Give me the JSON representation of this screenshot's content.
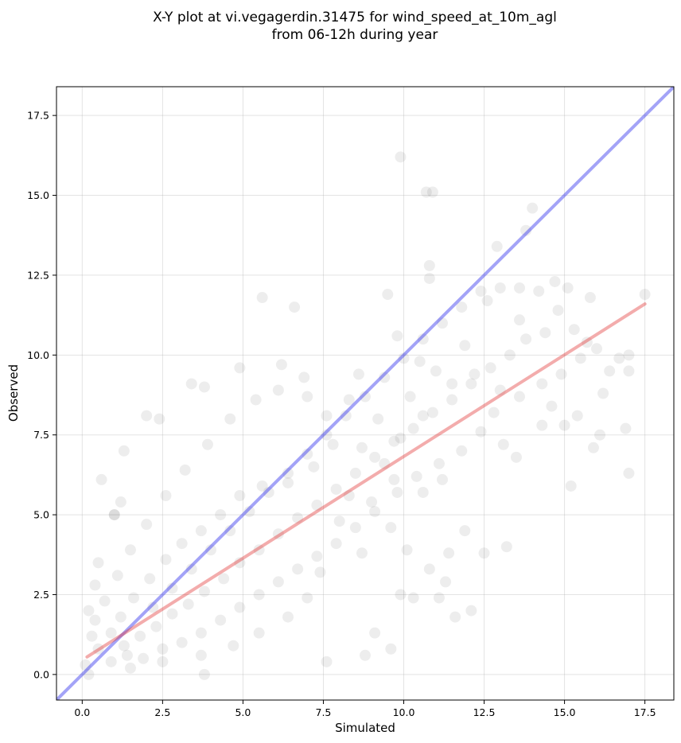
{
  "chart_data": {
    "type": "scatter",
    "title_lines": [
      "X-Y plot at vi.vegagerdin.31475 for wind_speed_at_10m_agl",
      "from 06-12h during year"
    ],
    "xlabel": "Simulated",
    "ylabel": "Observed",
    "xlim": [
      -0.8,
      18.4
    ],
    "ylim": [
      -0.8,
      18.4
    ],
    "xticks": [
      0.0,
      2.5,
      5.0,
      7.5,
      10.0,
      12.5,
      15.0,
      17.5
    ],
    "yticks": [
      0.0,
      2.5,
      5.0,
      7.5,
      10.0,
      12.5,
      15.0,
      17.5
    ],
    "xtick_labels": [
      "0.0",
      "2.5",
      "5.0",
      "7.5",
      "10.0",
      "12.5",
      "15.0",
      "17.5"
    ],
    "ytick_labels": [
      "0.0",
      "2.5",
      "5.0",
      "7.5",
      "10.0",
      "12.5",
      "15.0",
      "17.5"
    ],
    "grid": true,
    "point_color": "#000000",
    "point_opacity": 0.07,
    "identity_line": {
      "from": [
        -0.8,
        -0.8
      ],
      "to": [
        18.4,
        18.4
      ],
      "color": "#3333ee",
      "opacity": 0.45
    },
    "fit_line": {
      "from": [
        0.15,
        0.55
      ],
      "to": [
        17.5,
        11.6
      ],
      "color": "#e03030",
      "opacity": 0.4
    },
    "points": [
      [
        9.9,
        16.2
      ],
      [
        10.7,
        15.1
      ],
      [
        10.9,
        15.1
      ],
      [
        13.8,
        13.9
      ],
      [
        14.0,
        14.6
      ],
      [
        12.9,
        13.4
      ],
      [
        10.8,
        12.8
      ],
      [
        10.8,
        12.4
      ],
      [
        5.6,
        11.8
      ],
      [
        6.6,
        11.5
      ],
      [
        9.5,
        11.9
      ],
      [
        17.5,
        11.9
      ],
      [
        15.1,
        12.1
      ],
      [
        14.7,
        12.3
      ],
      [
        15.8,
        11.8
      ],
      [
        17.0,
        10.0
      ],
      [
        17.0,
        9.5
      ],
      [
        16.9,
        7.7
      ],
      [
        17.0,
        6.3
      ],
      [
        15.2,
        5.9
      ],
      [
        16.1,
        7.5
      ],
      [
        15.9,
        7.1
      ],
      [
        12.1,
        2.0
      ],
      [
        13.2,
        4.0
      ],
      [
        10.3,
        2.4
      ],
      [
        11.1,
        2.4
      ],
      [
        11.6,
        1.8
      ],
      [
        11.3,
        2.9
      ],
      [
        9.9,
        2.5
      ],
      [
        8.8,
        0.6
      ],
      [
        9.6,
        0.8
      ],
      [
        1.0,
        5.0
      ],
      [
        1.2,
        5.4
      ],
      [
        1.3,
        7.0
      ],
      [
        0.6,
        6.1
      ],
      [
        1.0,
        5.0
      ],
      [
        3.4,
        9.1
      ],
      [
        3.8,
        9.0
      ],
      [
        2.0,
        8.1
      ],
      [
        2.4,
        8.0
      ],
      [
        4.9,
        9.6
      ],
      [
        6.9,
        9.3
      ],
      [
        6.2,
        9.7
      ],
      [
        0.4,
        2.8
      ],
      [
        0.2,
        2.0
      ],
      [
        0.5,
        3.5
      ],
      [
        0.1,
        0.3
      ],
      [
        0.2,
        0.0
      ],
      [
        3.8,
        0.0
      ],
      [
        7.6,
        0.4
      ],
      [
        9.1,
        1.3
      ],
      [
        11.4,
        3.8
      ],
      [
        12.5,
        3.8
      ],
      [
        13.5,
        6.8
      ],
      [
        14.3,
        7.8
      ],
      [
        14.6,
        8.4
      ],
      [
        15.4,
        8.1
      ],
      [
        16.0,
        10.2
      ],
      [
        15.7,
        10.4
      ],
      [
        16.4,
        9.5
      ],
      [
        14.4,
        10.7
      ],
      [
        13.6,
        11.1
      ],
      [
        12.6,
        11.7
      ],
      [
        11.9,
        10.3
      ],
      [
        12.2,
        9.4
      ],
      [
        11.5,
        9.1
      ],
      [
        12.8,
        8.2
      ],
      [
        13.1,
        7.2
      ],
      [
        11.2,
        6.1
      ],
      [
        10.6,
        5.7
      ],
      [
        11.9,
        4.5
      ],
      [
        10.8,
        3.3
      ],
      [
        10.1,
        3.9
      ],
      [
        9.6,
        4.6
      ],
      [
        9.0,
        5.4
      ],
      [
        9.4,
        6.6
      ],
      [
        8.7,
        7.1
      ],
      [
        9.2,
        8.0
      ],
      [
        8.3,
        8.6
      ],
      [
        8.6,
        9.4
      ],
      [
        9.8,
        10.6
      ],
      [
        10.5,
        9.8
      ],
      [
        10.2,
        8.7
      ],
      [
        11.0,
        9.5
      ],
      [
        10.6,
        8.1
      ],
      [
        9.9,
        7.4
      ],
      [
        9.7,
        6.1
      ],
      [
        8.3,
        5.6
      ],
      [
        8.0,
        4.8
      ],
      [
        8.7,
        3.8
      ],
      [
        7.4,
        3.2
      ],
      [
        7.0,
        2.4
      ],
      [
        6.4,
        1.8
      ],
      [
        5.5,
        1.3
      ],
      [
        4.7,
        0.9
      ],
      [
        3.7,
        0.6
      ],
      [
        2.5,
        0.4
      ],
      [
        1.5,
        0.2
      ],
      [
        0.9,
        0.4
      ],
      [
        0.5,
        0.8
      ],
      [
        0.3,
        1.2
      ],
      [
        0.4,
        1.7
      ],
      [
        0.7,
        2.3
      ],
      [
        1.1,
        3.1
      ],
      [
        1.5,
        3.9
      ],
      [
        2.0,
        4.7
      ],
      [
        2.6,
        5.6
      ],
      [
        3.2,
        6.4
      ],
      [
        3.9,
        7.2
      ],
      [
        4.6,
        8.0
      ],
      [
        5.4,
        8.6
      ],
      [
        6.1,
        8.9
      ],
      [
        7.0,
        8.7
      ],
      [
        7.6,
        8.1
      ],
      [
        7.8,
        7.2
      ],
      [
        7.2,
        6.5
      ],
      [
        6.4,
        6.0
      ],
      [
        5.6,
        5.9
      ],
      [
        4.9,
        5.6
      ],
      [
        4.3,
        5.0
      ],
      [
        3.7,
        4.5
      ],
      [
        3.1,
        4.1
      ],
      [
        2.6,
        3.6
      ],
      [
        2.1,
        3.0
      ],
      [
        1.6,
        2.4
      ],
      [
        1.2,
        1.8
      ],
      [
        0.9,
        1.3
      ],
      [
        1.3,
        0.9
      ],
      [
        1.8,
        1.2
      ],
      [
        2.3,
        1.5
      ],
      [
        2.8,
        1.9
      ],
      [
        3.3,
        2.2
      ],
      [
        3.8,
        2.6
      ],
      [
        4.4,
        3.0
      ],
      [
        4.9,
        3.5
      ],
      [
        5.5,
        3.9
      ],
      [
        6.1,
        4.4
      ],
      [
        6.7,
        4.9
      ],
      [
        7.3,
        5.3
      ],
      [
        7.9,
        5.8
      ],
      [
        8.5,
        6.3
      ],
      [
        9.1,
        6.8
      ],
      [
        9.7,
        7.3
      ],
      [
        10.3,
        7.7
      ],
      [
        10.9,
        8.2
      ],
      [
        11.5,
        8.6
      ],
      [
        12.1,
        9.1
      ],
      [
        12.7,
        9.6
      ],
      [
        13.3,
        10.0
      ],
      [
        13.8,
        10.5
      ],
      [
        14.3,
        9.1
      ],
      [
        14.9,
        9.4
      ],
      [
        15.5,
        9.9
      ],
      [
        13.6,
        8.7
      ],
      [
        13.0,
        8.9
      ],
      [
        12.4,
        7.6
      ],
      [
        11.8,
        7.0
      ],
      [
        11.1,
        6.6
      ],
      [
        10.4,
        6.2
      ],
      [
        9.8,
        5.7
      ],
      [
        9.1,
        5.1
      ],
      [
        8.5,
        4.6
      ],
      [
        7.9,
        4.1
      ],
      [
        7.3,
        3.7
      ],
      [
        6.7,
        3.3
      ],
      [
        6.1,
        2.9
      ],
      [
        5.5,
        2.5
      ],
      [
        4.9,
        2.1
      ],
      [
        4.3,
        1.7
      ],
      [
        3.7,
        1.3
      ],
      [
        3.1,
        1.0
      ],
      [
        2.5,
        0.8
      ],
      [
        1.9,
        0.5
      ],
      [
        1.4,
        0.6
      ],
      [
        2.2,
        2.1
      ],
      [
        2.8,
        2.7
      ],
      [
        3.4,
        3.3
      ],
      [
        4.0,
        3.9
      ],
      [
        4.6,
        4.5
      ],
      [
        5.2,
        5.1
      ],
      [
        5.8,
        5.7
      ],
      [
        6.4,
        6.3
      ],
      [
        7.0,
        6.9
      ],
      [
        7.6,
        7.5
      ],
      [
        8.2,
        8.1
      ],
      [
        8.8,
        8.7
      ],
      [
        9.4,
        9.3
      ],
      [
        10.0,
        9.9
      ],
      [
        10.6,
        10.5
      ],
      [
        11.2,
        11.0
      ],
      [
        11.8,
        11.5
      ],
      [
        12.4,
        12.0
      ],
      [
        13.0,
        12.1
      ],
      [
        13.6,
        12.1
      ],
      [
        14.2,
        12.0
      ],
      [
        14.8,
        11.4
      ],
      [
        15.3,
        10.8
      ],
      [
        16.7,
        9.9
      ],
      [
        16.2,
        8.8
      ],
      [
        15.0,
        7.8
      ]
    ]
  }
}
